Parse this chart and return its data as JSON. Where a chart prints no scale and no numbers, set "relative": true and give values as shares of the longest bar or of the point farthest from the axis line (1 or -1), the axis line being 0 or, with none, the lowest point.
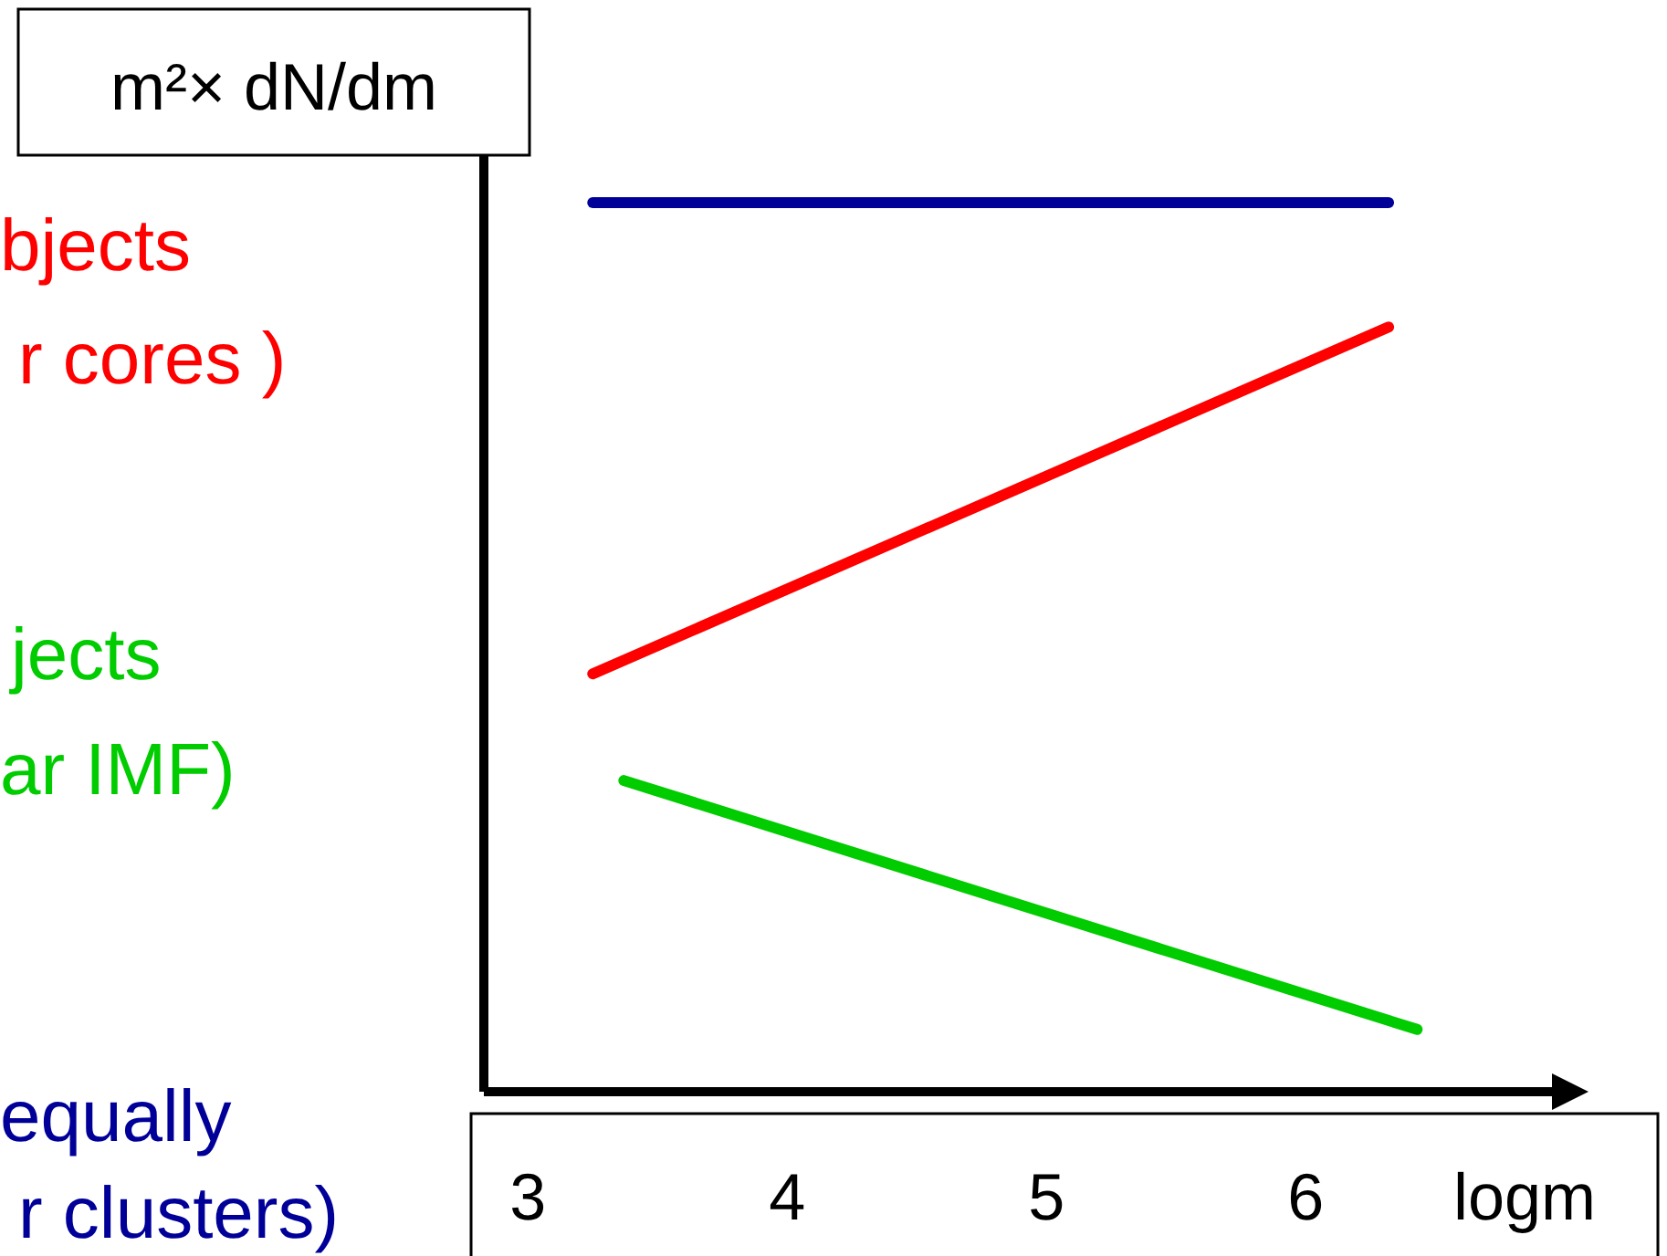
{
  "chart_data": {
    "type": "line",
    "relative": true,
    "ylabel": "m²× dN/dm",
    "xlabel": "logm",
    "xlim": [
      2.83,
      6.95
    ],
    "xticks": [
      3,
      4,
      5,
      6
    ],
    "grid": false,
    "marker": "none",
    "line_style": "solid",
    "series": [
      {
        "color": "#ff0000",
        "x": [
          3.25,
          6.32
        ],
        "values": [
          0.47,
          0.86
        ]
      },
      {
        "color": "#00cc00",
        "x": [
          3.37,
          6.43
        ],
        "values": [
          0.35,
          0.07
        ]
      },
      {
        "color": "#000099",
        "x": [
          3.25,
          6.32
        ],
        "values": [
          1,
          1
        ]
      }
    ],
    "annotations": [
      "bjects",
      "r cores )",
      "jects",
      "ar IMF)",
      "equally",
      "r clusters)"
    ]
  }
}
